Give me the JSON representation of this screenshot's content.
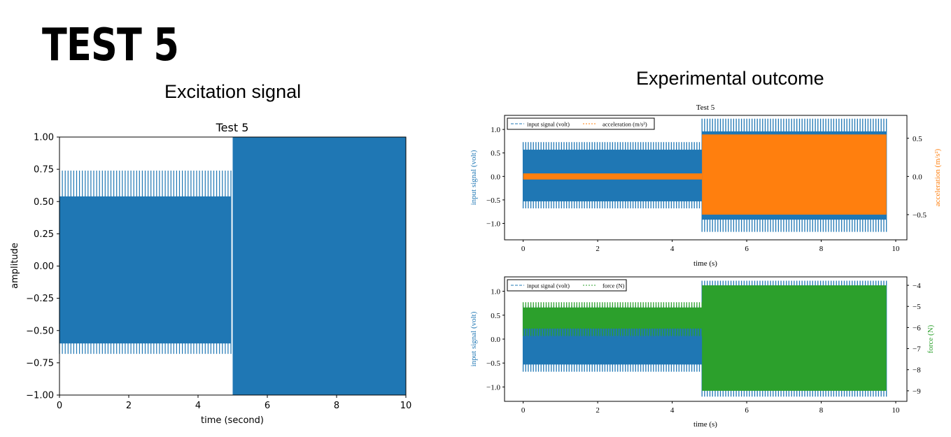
{
  "slide": {
    "title": "TEST 5",
    "left_heading": "Excitation signal",
    "right_heading": "Experimental outcome"
  },
  "colors": {
    "blue": "#1f77b4",
    "orange": "#ff7f0e",
    "green": "#2ca02c"
  },
  "chart_data": [
    {
      "type": "line",
      "title": "Test 5",
      "xlabel": "time (second)",
      "ylabel": "amplitude",
      "xlim": [
        0,
        10
      ],
      "ylim": [
        -1.0,
        1.0
      ],
      "xticks": [
        "0",
        "2",
        "4",
        "6",
        "8",
        "10"
      ],
      "yticks": [
        "−1.00",
        "−0.75",
        "−0.50",
        "−0.25",
        "0.00",
        "0.25",
        "0.50",
        "0.75",
        "1.00"
      ],
      "series": [
        {
          "segments": [
            {
              "x": [
                0,
                4.95
              ],
              "amplitude": 0.74
            },
            {
              "x": [
                5.0,
                10
              ],
              "amplitude": 1.0
            }
          ]
        }
      ]
    },
    {
      "type": "line",
      "title": "Test 5",
      "xlabel": "time (s)",
      "ylabel_left": "input signal (volt)",
      "ylabel_right": "acceleration (m/s²)",
      "xlim": [
        -0.5,
        10.3
      ],
      "ylim_left": [
        -1.35,
        1.3
      ],
      "ylim_right": [
        -0.83,
        0.8
      ],
      "xticks": [
        "0",
        "2",
        "4",
        "6",
        "8",
        "10"
      ],
      "yticks_left": [
        "−1.0",
        "−0.5",
        "0.0",
        "0.5",
        "1.0"
      ],
      "yticks_right": [
        "−0.5",
        "0.0",
        "0.5"
      ],
      "legend": [
        "input signal (volt)",
        "acceleration (m/s²)"
      ],
      "legend_position": "top-left",
      "series": [
        {
          "name": "input signal (volt)",
          "segments": [
            {
              "x": [
                0,
                4.8
              ],
              "min": -0.68,
              "max": 0.73
            },
            {
              "x": [
                4.8,
                9.75
              ],
              "min": -1.18,
              "max": 1.23
            }
          ]
        },
        {
          "name": "acceleration (m/s²)",
          "segments": [
            {
              "x": [
                0,
                4.8
              ],
              "min": -0.04,
              "max": 0.04
            },
            {
              "x": [
                4.8,
                9.75
              ],
              "min": -0.5,
              "max": 0.55
            }
          ]
        }
      ]
    },
    {
      "type": "line",
      "title": "",
      "xlabel": "time (s)",
      "ylabel_left": "input signal (volt)",
      "ylabel_right": "force (N)",
      "xlim": [
        -0.5,
        10.3
      ],
      "ylim_left": [
        -1.3,
        1.3
      ],
      "ylim_right": [
        -9.5,
        -3.6
      ],
      "xticks": [
        "0",
        "2",
        "4",
        "6",
        "8",
        "10"
      ],
      "yticks_left": [
        "−1.0",
        "−0.5",
        "0.0",
        "0.5",
        "1.0"
      ],
      "yticks_right": [
        "−9",
        "−8",
        "−7",
        "−6",
        "−5",
        "−4"
      ],
      "legend": [
        "input signal (volt)",
        "force (N)"
      ],
      "legend_position": "top-left",
      "series": [
        {
          "name": "input signal (volt)",
          "segments": [
            {
              "x": [
                0,
                4.8
              ],
              "min": -0.68,
              "max": 0.7
            },
            {
              "x": [
                4.8,
                9.75
              ],
              "min": -1.2,
              "max": 1.22
            }
          ]
        },
        {
          "name": "force (N)",
          "segments": [
            {
              "x": [
                0,
                4.8
              ],
              "min": -6.4,
              "max": -4.8
            },
            {
              "x": [
                4.8,
                9.75
              ],
              "min": -9.0,
              "max": -4.0
            }
          ]
        }
      ]
    }
  ]
}
